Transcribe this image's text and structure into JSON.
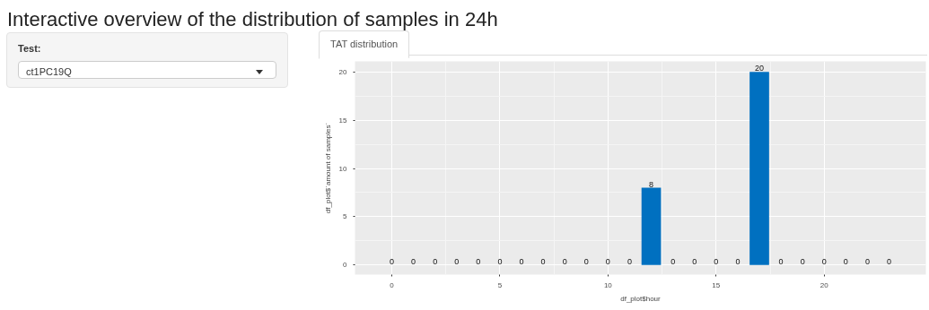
{
  "chart_data": {
    "type": "bar",
    "title": "Interactive overview of the distribution of samples in 24h",
    "annotations": [
      "Test:",
      "ct1PC19Q",
      "TAT distribution"
    ],
    "xlabel": "df_plot$hour",
    "ylabel": "df_plot$`amount of samples`",
    "x": [
      0,
      1,
      2,
      3,
      4,
      5,
      6,
      7,
      8,
      9,
      10,
      11,
      12,
      13,
      14,
      15,
      16,
      17,
      18,
      19,
      20,
      21,
      22,
      23
    ],
    "values": [
      0,
      0,
      0,
      0,
      0,
      0,
      0,
      0,
      0,
      0,
      0,
      0,
      8,
      0,
      0,
      0,
      0,
      20,
      0,
      0,
      0,
      0,
      0,
      0
    ],
    "color": "#0070c0",
    "data_labels": true,
    "grid": true,
    "xlim": [
      -1.7,
      24.7
    ],
    "xticks": [
      0,
      5,
      10,
      15,
      20
    ],
    "ylim": [
      -1,
      21.1
    ],
    "yticks": [
      0,
      5,
      10,
      15,
      20
    ]
  }
}
